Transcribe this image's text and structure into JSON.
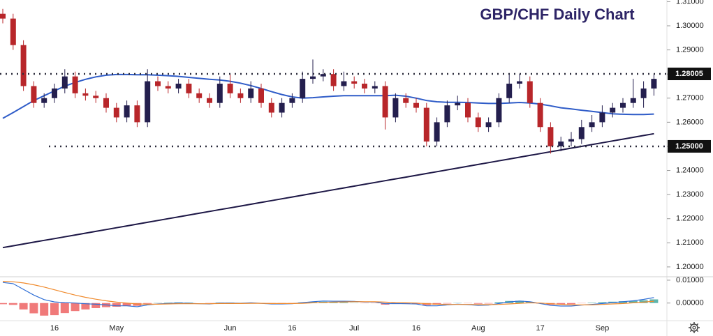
{
  "chart_data": [
    {
      "type": "candlestick",
      "title": "GBP/CHF Daily Chart",
      "categories": [
        null,
        null,
        null,
        null,
        null,
        "16",
        null,
        null,
        null,
        null,
        null,
        "May",
        null,
        null,
        null,
        null,
        null,
        null,
        null,
        null,
        null,
        null,
        "Jun",
        null,
        null,
        null,
        null,
        null,
        "16",
        null,
        null,
        null,
        null,
        null,
        "Jul",
        null,
        null,
        null,
        null,
        null,
        "16",
        null,
        null,
        null,
        null,
        null,
        "Aug",
        null,
        null,
        null,
        null,
        null,
        "17",
        null,
        null,
        null,
        null,
        null,
        "Sep",
        null,
        null,
        null,
        null,
        null
      ],
      "open": [
        1.305,
        1.303,
        1.292,
        1.275,
        1.268,
        1.27,
        1.274,
        1.279,
        1.272,
        1.271,
        1.27,
        1.266,
        1.262,
        1.267,
        1.26,
        1.277,
        1.275,
        1.274,
        1.276,
        1.272,
        1.27,
        1.268,
        1.276,
        1.272,
        1.27,
        1.274,
        1.268,
        1.264,
        1.268,
        1.27,
        1.278,
        1.279,
        1.28,
        1.275,
        1.277,
        1.276,
        1.274,
        1.275,
        1.262,
        1.27,
        1.268,
        1.266,
        1.252,
        1.26,
        1.267,
        1.268,
        1.262,
        1.258,
        1.26,
        1.27,
        1.276,
        1.277,
        1.268,
        1.258,
        1.25,
        1.252,
        1.253,
        1.258,
        1.26,
        1.264,
        1.266,
        1.268,
        1.27,
        1.274
      ],
      "high": [
        1.307,
        1.305,
        1.294,
        1.277,
        1.272,
        1.276,
        1.282,
        1.281,
        1.274,
        1.273,
        1.272,
        1.268,
        1.269,
        1.269,
        1.282,
        1.279,
        1.277,
        1.278,
        1.278,
        1.274,
        1.272,
        1.279,
        1.28,
        1.274,
        1.277,
        1.276,
        1.27,
        1.27,
        1.272,
        1.281,
        1.286,
        1.282,
        1.282,
        1.281,
        1.279,
        1.278,
        1.277,
        1.277,
        1.272,
        1.272,
        1.27,
        1.268,
        1.262,
        1.269,
        1.271,
        1.27,
        1.264,
        1.262,
        1.272,
        1.28,
        1.28,
        1.279,
        1.27,
        1.26,
        1.254,
        1.256,
        1.261,
        1.263,
        1.267,
        1.268,
        1.27,
        1.278,
        1.277,
        1.28
      ],
      "low": [
        1.301,
        1.29,
        1.273,
        1.266,
        1.266,
        1.268,
        1.272,
        1.27,
        1.269,
        1.268,
        1.264,
        1.26,
        1.26,
        1.258,
        1.258,
        1.273,
        1.272,
        1.272,
        1.27,
        1.268,
        1.266,
        1.266,
        1.27,
        1.268,
        1.268,
        1.266,
        1.262,
        1.262,
        1.266,
        1.268,
        1.276,
        1.277,
        1.273,
        1.273,
        1.274,
        1.272,
        1.272,
        1.257,
        1.26,
        1.266,
        1.264,
        1.25,
        1.25,
        1.258,
        1.265,
        1.26,
        1.256,
        1.256,
        1.258,
        1.268,
        1.274,
        1.266,
        1.256,
        1.247,
        1.248,
        1.25,
        1.251,
        1.256,
        1.258,
        1.262,
        1.264,
        1.266,
        1.266,
        1.271
      ],
      "close": [
        1.303,
        1.292,
        1.275,
        1.268,
        1.27,
        1.274,
        1.279,
        1.272,
        1.271,
        1.27,
        1.266,
        1.262,
        1.267,
        1.26,
        1.277,
        1.275,
        1.274,
        1.276,
        1.272,
        1.27,
        1.268,
        1.276,
        1.272,
        1.27,
        1.274,
        1.268,
        1.264,
        1.268,
        1.27,
        1.278,
        1.279,
        1.28,
        1.275,
        1.277,
        1.276,
        1.274,
        1.275,
        1.262,
        1.27,
        1.268,
        1.266,
        1.252,
        1.26,
        1.267,
        1.268,
        1.262,
        1.258,
        1.26,
        1.27,
        1.276,
        1.277,
        1.268,
        1.258,
        1.25,
        1.252,
        1.253,
        1.258,
        1.26,
        1.264,
        1.266,
        1.268,
        1.27,
        1.274,
        1.278
      ],
      "up_color": "#241f4e",
      "down_color": "#b8262a",
      "series": [
        {
          "color": "#2f5cc8",
          "values": [
            1.2616,
            1.264,
            1.2665,
            1.269,
            1.271,
            1.273,
            1.275,
            1.2765,
            1.2778,
            1.2788,
            1.2795,
            1.2798,
            1.2798,
            1.2797,
            1.2797,
            1.2795,
            1.2793,
            1.279,
            1.2786,
            1.2782,
            1.2778,
            1.2775,
            1.277,
            1.2762,
            1.2752,
            1.274,
            1.2727,
            1.2715,
            1.2705,
            1.27,
            1.2702,
            1.2705,
            1.2708,
            1.271,
            1.271,
            1.271,
            1.271,
            1.271,
            1.2712,
            1.2708,
            1.27,
            1.269,
            1.2685,
            1.2683,
            1.2683,
            1.2682,
            1.268,
            1.2678,
            1.2678,
            1.268,
            1.2682,
            1.268,
            1.2675,
            1.2668,
            1.266,
            1.2655,
            1.265,
            1.2645,
            1.264,
            1.2635,
            1.2633,
            1.2632,
            1.2632,
            1.2634
          ]
        },
        {
          "color": "#1c1645",
          "values": [
            1.208,
            1.20875,
            1.2095,
            1.21025,
            1.211,
            1.21175,
            1.2125,
            1.21325,
            1.214,
            1.21475,
            1.2155,
            1.21625,
            1.217,
            1.21775,
            1.2185,
            1.21925,
            1.22,
            1.22075,
            1.2215,
            1.22225,
            1.223,
            1.22375,
            1.2245,
            1.22525,
            1.226,
            1.22675,
            1.2275,
            1.22825,
            1.229,
            1.22975,
            1.2305,
            1.23125,
            1.232,
            1.23275,
            1.2335,
            1.23425,
            1.235,
            1.23575,
            1.2365,
            1.23725,
            1.238,
            1.23875,
            1.2395,
            1.24025,
            1.241,
            1.24175,
            1.2425,
            1.24325,
            1.244,
            1.24475,
            1.2455,
            1.24625,
            1.247,
            1.24775,
            1.2485,
            1.24925,
            1.25,
            1.25075,
            1.2515,
            1.25225,
            1.253,
            1.25375,
            1.2545,
            1.25525
          ]
        }
      ],
      "levels": [
        1.28005,
        {
          "value": 1.25,
          "label": "1.25000"
        }
      ],
      "ylim": [
        1.1965,
        1.3107
      ],
      "yticks": [
        {
          "value": 1.31,
          "label": "1.31000"
        },
        {
          "value": 1.3,
          "label": "1.30000"
        },
        {
          "value": 1.29,
          "label": "1.29000"
        },
        {
          "value": 1.28,
          "label": "1.28000"
        },
        {
          "value": 1.27,
          "label": "1.27000"
        },
        {
          "value": 1.26,
          "label": "1.26000"
        },
        {
          "value": 1.25,
          "label": "1.25000"
        },
        {
          "value": 1.24,
          "label": "1.24000"
        },
        {
          "value": 1.23,
          "label": "1.23000"
        },
        {
          "value": 1.22,
          "label": "1.22000"
        },
        {
          "value": 1.21,
          "label": "1.21000"
        },
        {
          "value": 1.2,
          "label": "1.20000"
        }
      ]
    },
    {
      "type": "macd",
      "histogram": {
        "up_color": "#5fb5ad",
        "down_color": "#f07a7a",
        "values": [
          -0.0005,
          -0.0008,
          -0.0028,
          -0.0045,
          -0.0055,
          -0.0053,
          -0.0044,
          -0.0035,
          -0.0028,
          -0.0022,
          -0.0018,
          -0.0016,
          -0.0012,
          -0.0012,
          -0.0003,
          0.0001,
          0.0002,
          0.0003,
          0.0002,
          0,
          -0.0001,
          0.0002,
          0.0002,
          0.0001,
          0.0002,
          0,
          -0.0002,
          -0.0002,
          -0.0001,
          0.0003,
          0.0005,
          0.0006,
          0.0004,
          0.0003,
          0.0001,
          -0.0001,
          -0.0001,
          -0.0007,
          -0.0004,
          -0.0004,
          -0.0004,
          -0.0009,
          -0.0007,
          -0.0002,
          0.0001,
          -0.0001,
          -0.0003,
          -0.0002,
          0.0004,
          0.0009,
          0.001,
          0.0005,
          -0.0002,
          -0.0007,
          -0.0007,
          -0.0005,
          -0.0001,
          0.0002,
          0.0004,
          0.0006,
          0.0008,
          0.0009,
          0.0012,
          0.0016
        ]
      },
      "series": [
        {
          "color": "#2f6fd6",
          "values": [
            0.009,
            0.0085,
            0.006,
            0.0035,
            0.0015,
            0.0005,
            0.0002,
            0,
            -0.0003,
            -0.0005,
            -0.0008,
            -0.0012,
            -0.0012,
            -0.0016,
            -0.0008,
            -0.0004,
            -0.0002,
            0,
            -0.0001,
            -0.0003,
            -0.0004,
            0,
            0,
            -0.0001,
            0.0001,
            -0.0001,
            -0.0004,
            -0.0004,
            -0.0003,
            0.0002,
            0.0006,
            0.0009,
            0.0008,
            0.0008,
            0.0007,
            0.0005,
            0.0005,
            -0.0003,
            -0.0002,
            -0.0003,
            -0.0004,
            -0.0012,
            -0.0012,
            -0.0008,
            -0.0005,
            -0.0007,
            -0.001,
            -0.0009,
            -0.0002,
            0.0005,
            0.0009,
            0.0006,
            -0.0002,
            -0.001,
            -0.0013,
            -0.0013,
            -0.0009,
            -0.0006,
            -0.0002,
            0.0002,
            0.0006,
            0.001,
            0.0016,
            0.0024
          ]
        },
        {
          "color": "#f08a2c",
          "values": [
            0.0095,
            0.0093,
            0.0088,
            0.008,
            0.007,
            0.0058,
            0.0046,
            0.0035,
            0.0025,
            0.0017,
            0.001,
            0.0004,
            0,
            -0.0004,
            -0.0005,
            -0.0005,
            -0.0004,
            -0.0003,
            -0.0003,
            -0.0003,
            -0.0003,
            -0.0002,
            -0.0002,
            -0.0002,
            -0.0001,
            -0.0001,
            -0.0002,
            -0.0002,
            -0.0002,
            -0.0001,
            0.0001,
            0.0003,
            0.0004,
            0.0005,
            0.0006,
            0.0006,
            0.0006,
            0.0004,
            0.0002,
            0.0001,
            0,
            -0.0003,
            -0.0005,
            -0.0006,
            -0.0006,
            -0.0006,
            -0.0007,
            -0.0007,
            -0.0006,
            -0.0004,
            -0.0001,
            0.0001,
            0,
            -0.0003,
            -0.0006,
            -0.0008,
            -0.0008,
            -0.0008,
            -0.0006,
            -0.0004,
            -0.0002,
            0.0001,
            0.0004,
            0.0008
          ]
        }
      ],
      "ylim": [
        -0.0074,
        0.0112
      ],
      "yticks": [
        {
          "value": 0.01,
          "label": "0.01000"
        },
        {
          "value": 0,
          "label": "0.00000"
        }
      ]
    }
  ]
}
